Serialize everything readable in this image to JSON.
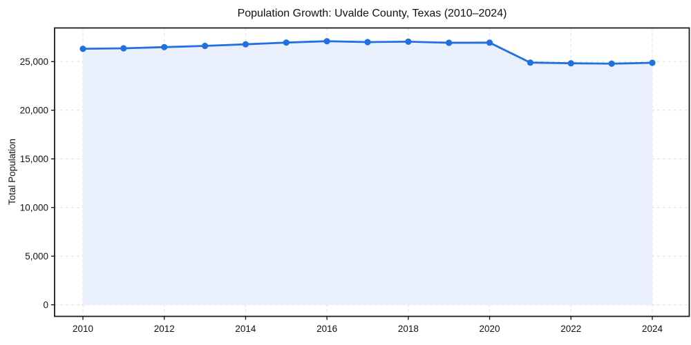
{
  "chart": {
    "title": "Population Growth: Uvalde County, Texas (2010–2024)",
    "ylabel": "Total Population"
  },
  "chart_data": {
    "type": "area",
    "title": "Population Growth: Uvalde County, Texas (2010–2024)",
    "xlabel": "",
    "ylabel": "Total Population",
    "x": [
      2010,
      2011,
      2012,
      2013,
      2014,
      2015,
      2016,
      2017,
      2018,
      2019,
      2020,
      2021,
      2022,
      2023,
      2024
    ],
    "values": [
      26320,
      26370,
      26490,
      26620,
      26780,
      26960,
      27100,
      27010,
      27050,
      26940,
      26950,
      24900,
      24830,
      24790,
      24880
    ],
    "xticks": [
      2010,
      2012,
      2014,
      2016,
      2018,
      2020,
      2022,
      2024
    ],
    "yticks": [
      0,
      5000,
      10000,
      15000,
      20000,
      25000
    ],
    "ylim": [
      -1400,
      28460
    ],
    "grid": true,
    "legend": "none",
    "line_color": "#2170e0",
    "fill_color": "#e9f0fb",
    "marker_color": "#2170e0",
    "grid_color": "#d9d9d9",
    "spine_color": "#1a1a1a",
    "tick_label_color": "#111111"
  }
}
